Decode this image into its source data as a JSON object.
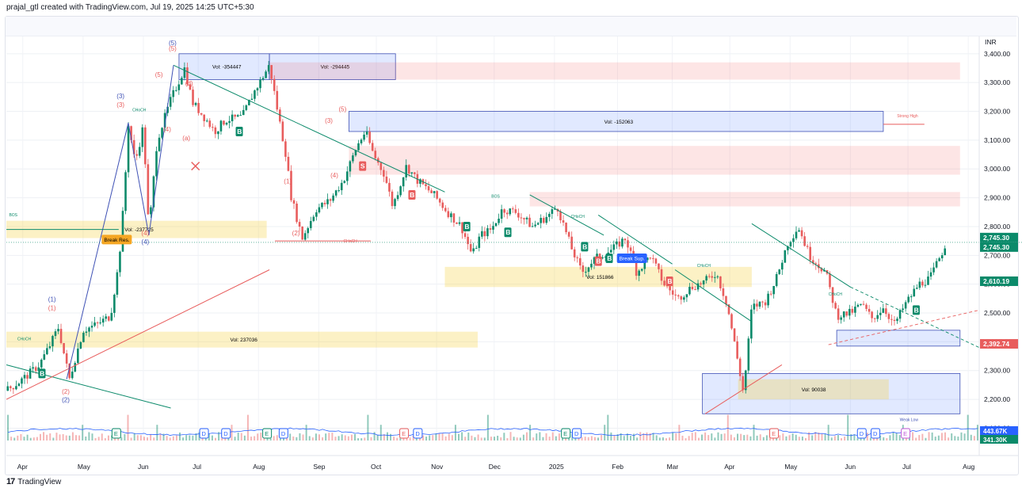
{
  "header": {
    "text": "prajal_gtl created with TradingView.com, Jul 19, 2025 14:25 UTC+5:30"
  },
  "footer": {
    "brand": "TradingView",
    "logo": "17"
  },
  "chart_data": {
    "type": "candlestick",
    "currency": "INR",
    "ylim": [
      2060,
      3460
    ],
    "y_ticks": [
      2100,
      2200,
      2300,
      2400,
      2500,
      2600,
      2700,
      2800,
      2900,
      3000,
      3100,
      3200,
      3300,
      3400
    ],
    "y_tick_labels": [
      "2,100.00",
      "2,200.00",
      "2,300.00",
      "2,400.00",
      "2,500.00",
      "2,600.00",
      "2,700.00",
      "2,800.00",
      "2,900.00",
      "3,000.00",
      "3,100.00",
      "3,200.00",
      "3,300.00",
      "3,400.00"
    ],
    "x_labels": [
      {
        "label": "Apr",
        "t": 0.6
      },
      {
        "label": "May",
        "t": 2.8
      },
      {
        "label": "Jun",
        "t": 5.0
      },
      {
        "label": "Jul",
        "t": 7.0
      },
      {
        "label": "Aug",
        "t": 9.2
      },
      {
        "label": "Sep",
        "t": 11.4
      },
      {
        "label": "Oct",
        "t": 13.5
      },
      {
        "label": "Nov",
        "t": 15.7
      },
      {
        "label": "Dec",
        "t": 17.8
      },
      {
        "label": "2025",
        "t": 20.0
      },
      {
        "label": "Feb",
        "t": 22.3
      },
      {
        "label": "Mar",
        "t": 24.3
      },
      {
        "label": "Apr",
        "t": 26.4
      },
      {
        "label": "May",
        "t": 28.6
      },
      {
        "label": "Jun",
        "t": 30.8
      },
      {
        "label": "Jul",
        "t": 32.9
      },
      {
        "label": "Aug",
        "t": 35.1
      }
    ],
    "price_path": [
      [
        0.0,
        2230
      ],
      [
        0.6,
        2270
      ],
      [
        1.2,
        2320
      ],
      [
        1.6,
        2390
      ],
      [
        1.9,
        2450
      ],
      [
        2.3,
        2270
      ],
      [
        2.8,
        2440
      ],
      [
        3.3,
        2460
      ],
      [
        3.8,
        2490
      ],
      [
        4.1,
        2670
      ],
      [
        4.3,
        2900
      ],
      [
        4.45,
        3160
      ],
      [
        4.7,
        3020
      ],
      [
        5.0,
        3150
      ],
      [
        5.2,
        2780
      ],
      [
        5.5,
        3100
      ],
      [
        6.0,
        3240
      ],
      [
        6.5,
        3350
      ],
      [
        6.8,
        3230
      ],
      [
        7.3,
        3170
      ],
      [
        7.6,
        3130
      ],
      [
        8.0,
        3170
      ],
      [
        8.6,
        3180
      ],
      [
        9.0,
        3260
      ],
      [
        9.6,
        3360
      ],
      [
        9.9,
        3200
      ],
      [
        10.2,
        3050
      ],
      [
        10.4,
        2900
      ],
      [
        10.8,
        2760
      ],
      [
        11.3,
        2860
      ],
      [
        11.8,
        2890
      ],
      [
        12.3,
        2960
      ],
      [
        12.8,
        3080
      ],
      [
        13.1,
        3130
      ],
      [
        13.4,
        3050
      ],
      [
        13.8,
        2980
      ],
      [
        14.1,
        2870
      ],
      [
        14.6,
        3010
      ],
      [
        15.0,
        2960
      ],
      [
        15.6,
        2910
      ],
      [
        16.1,
        2850
      ],
      [
        16.6,
        2800
      ],
      [
        17.0,
        2700
      ],
      [
        17.3,
        2770
      ],
      [
        17.7,
        2790
      ],
      [
        18.1,
        2860
      ],
      [
        18.6,
        2850
      ],
      [
        19.2,
        2800
      ],
      [
        19.8,
        2840
      ],
      [
        20.1,
        2870
      ],
      [
        20.6,
        2730
      ],
      [
        21.0,
        2640
      ],
      [
        21.5,
        2690
      ],
      [
        22.1,
        2720
      ],
      [
        22.6,
        2760
      ],
      [
        23.0,
        2640
      ],
      [
        23.5,
        2700
      ],
      [
        24.0,
        2600
      ],
      [
        24.5,
        2550
      ],
      [
        25.0,
        2590
      ],
      [
        25.5,
        2610
      ],
      [
        25.9,
        2640
      ],
      [
        26.3,
        2530
      ],
      [
        26.6,
        2380
      ],
      [
        26.9,
        2220
      ],
      [
        27.2,
        2520
      ],
      [
        27.7,
        2540
      ],
      [
        28.1,
        2620
      ],
      [
        28.5,
        2740
      ],
      [
        28.9,
        2800
      ],
      [
        29.3,
        2700
      ],
      [
        29.7,
        2660
      ],
      [
        29.9,
        2640
      ],
      [
        30.3,
        2490
      ],
      [
        30.8,
        2500
      ],
      [
        31.2,
        2530
      ],
      [
        31.6,
        2480
      ],
      [
        32.0,
        2520
      ],
      [
        32.4,
        2460
      ],
      [
        32.8,
        2530
      ],
      [
        33.3,
        2600
      ],
      [
        33.7,
        2620
      ],
      [
        34.0,
        2680
      ],
      [
        34.3,
        2745
      ]
    ],
    "last_price_labels": [
      "2,745.30",
      "2,745.30",
      "2,610.19",
      "2,392.74"
    ],
    "volume_labels": [
      "443.67K",
      "341.30K"
    ],
    "zones": [
      {
        "label": "Vol: -354447",
        "t0": 6.3,
        "t1": 9.6,
        "p0": 3310,
        "p1": 3400,
        "kind": "blue"
      },
      {
        "label": "Vol: -294445",
        "t0": 9.6,
        "t1": 14.2,
        "p0": 3310,
        "p1": 3400,
        "kind": "blue"
      },
      {
        "label": "",
        "t0": 9.6,
        "t1": 34.8,
        "p0": 3310,
        "p1": 3370,
        "kind": "red"
      },
      {
        "label": "Vol: -152063",
        "t0": 12.5,
        "t1": 32.0,
        "p0": 3130,
        "p1": 3200,
        "kind": "blue"
      },
      {
        "label": "",
        "t0": 12.5,
        "t1": 34.8,
        "p0": 2980,
        "p1": 3080,
        "kind": "red"
      },
      {
        "label": "",
        "t0": 19.1,
        "t1": 34.8,
        "p0": 2870,
        "p1": 2920,
        "kind": "red"
      },
      {
        "label": "Vol: -237725",
        "t0": 0.0,
        "t1": 9.5,
        "p0": 2760,
        "p1": 2820,
        "kind": "yellow"
      },
      {
        "label": "Vol: 151866",
        "t0": 16.0,
        "t1": 27.2,
        "p0": 2590,
        "p1": 2660,
        "kind": "yellow"
      },
      {
        "label": "Vol: 237036",
        "t0": 0.0,
        "t1": 17.2,
        "p0": 2380,
        "p1": 2435,
        "kind": "yellow"
      },
      {
        "label": "",
        "t0": 30.3,
        "t1": 34.8,
        "p0": 2385,
        "p1": 2440,
        "kind": "blue"
      },
      {
        "label": "",
        "t0": 25.4,
        "t1": 34.8,
        "p0": 2150,
        "p1": 2290,
        "kind": "blue"
      },
      {
        "label": "Vol: 90038",
        "t0": 26.7,
        "t1": 32.2,
        "p0": 2200,
        "p1": 2270,
        "kind": "yellow"
      }
    ],
    "lines": [
      {
        "t0": 0.0,
        "p0": 2320,
        "t1": 6.0,
        "p1": 2170,
        "color": "#0b8a6a"
      },
      {
        "t0": 6.1,
        "p0": 3360,
        "t1": 16.0,
        "p1": 2920,
        "color": "#0b8a6a"
      },
      {
        "t0": 19.1,
        "p0": 2910,
        "t1": 21.8,
        "p1": 2770,
        "color": "#0b8a6a"
      },
      {
        "t0": 21.6,
        "p0": 2840,
        "t1": 24.3,
        "p1": 2670,
        "color": "#0b8a6a"
      },
      {
        "t0": 24.4,
        "p0": 2650,
        "t1": 27.2,
        "p1": 2470,
        "color": "#0b8a6a"
      },
      {
        "t0": 27.2,
        "p0": 2810,
        "t1": 30.8,
        "p1": 2590,
        "color": "#0b8a6a"
      },
      {
        "t0": 0.0,
        "p0": 2200,
        "t1": 9.6,
        "p1": 2650,
        "color": "#e85d5d"
      },
      {
        "t0": 25.5,
        "p0": 2150,
        "t1": 28.3,
        "p1": 2320,
        "color": "#e85d5d"
      },
      {
        "t0": 4.45,
        "p0": 3160,
        "t1": 5.2,
        "p1": 2770,
        "color": "#3f51b5"
      },
      {
        "t0": 5.2,
        "p0": 2770,
        "t1": 6.1,
        "p1": 3360,
        "color": "#3f51b5"
      },
      {
        "t0": 2.2,
        "p0": 2270,
        "t1": 4.45,
        "p1": 3160,
        "color": "#3f51b5"
      },
      {
        "t0": 9.8,
        "p0": 2750,
        "t1": 13.3,
        "p1": 2750,
        "color": "#e85d5d"
      }
    ],
    "wave_labels": [
      {
        "text": "(5)",
        "t": 6.1,
        "p": 3430,
        "color": "#3f51b5"
      },
      {
        "text": "(5)",
        "t": 6.1,
        "p": 3410,
        "color": "#e85d5d"
      },
      {
        "text": "(5)",
        "t": 5.6,
        "p": 3320,
        "color": "#e85d5d"
      },
      {
        "text": "(b)",
        "t": 6.7,
        "p": 3290,
        "color": "#e85d5d"
      },
      {
        "text": "(3)",
        "t": 4.2,
        "p": 3245,
        "color": "#3f51b5"
      },
      {
        "text": "(3)",
        "t": 4.2,
        "p": 3215,
        "color": "#e85d5d"
      },
      {
        "text": "(4)",
        "t": 5.9,
        "p": 3130,
        "color": "#e85d5d"
      },
      {
        "text": "(a)",
        "t": 6.6,
        "p": 3100,
        "color": "#e85d5d"
      },
      {
        "text": "(4)",
        "t": 5.1,
        "p": 2770,
        "color": "#e85d5d"
      },
      {
        "text": "(4)",
        "t": 5.1,
        "p": 2740,
        "color": "#3f51b5"
      },
      {
        "text": "(1)",
        "t": 1.7,
        "p": 2540,
        "color": "#3f51b5"
      },
      {
        "text": "(1)",
        "t": 1.7,
        "p": 2510,
        "color": "#e85d5d"
      },
      {
        "text": "(2)",
        "t": 2.2,
        "p": 2220,
        "color": "#e85d5d"
      },
      {
        "text": "(2)",
        "t": 2.2,
        "p": 2190,
        "color": "#3f51b5"
      },
      {
        "text": "(5)",
        "t": 12.3,
        "p": 3200,
        "color": "#e85d5d"
      },
      {
        "text": "(3)",
        "t": 11.8,
        "p": 3160,
        "color": "#e85d5d"
      },
      {
        "text": "(4)",
        "t": 12.0,
        "p": 2970,
        "color": "#e85d5d"
      },
      {
        "text": "(1)",
        "t": 10.3,
        "p": 2950,
        "color": "#e85d5d"
      },
      {
        "text": "(2)",
        "t": 10.6,
        "p": 2770,
        "color": "#e85d5d"
      }
    ],
    "markers": [
      {
        "text": "B",
        "t": 1.3,
        "p": 2290,
        "kind": "buy"
      },
      {
        "text": "B",
        "t": 8.5,
        "p": 3130,
        "kind": "buy"
      },
      {
        "text": "S",
        "t": 13.0,
        "p": 3010,
        "kind": "sell"
      },
      {
        "text": "B",
        "t": 14.8,
        "p": 2910,
        "kind": "sell"
      },
      {
        "text": "B",
        "t": 16.8,
        "p": 2800,
        "kind": "buy"
      },
      {
        "text": "B",
        "t": 18.3,
        "p": 2780,
        "kind": "buy"
      },
      {
        "text": "B",
        "t": 21.1,
        "p": 2730,
        "kind": "buy"
      },
      {
        "text": "B",
        "t": 21.6,
        "p": 2680,
        "kind": "sell"
      },
      {
        "text": "B",
        "t": 22.0,
        "p": 2690,
        "kind": "buy"
      },
      {
        "text": "B",
        "t": 24.2,
        "p": 2610,
        "kind": "sell"
      },
      {
        "text": "B",
        "t": 33.2,
        "p": 2510,
        "kind": "buy"
      }
    ],
    "small_labels": [
      {
        "text": "BOS",
        "t": 0.1,
        "p": 2835,
        "color": "#0b8a6a"
      },
      {
        "text": "CHoCH",
        "t": 4.6,
        "p": 3200,
        "color": "#0b8a6a"
      },
      {
        "text": "CHoCH",
        "t": 12.3,
        "p": 2745,
        "color": "#e85d5d"
      },
      {
        "text": "CHoCH",
        "t": 25.2,
        "p": 2660,
        "color": "#0b8a6a"
      },
      {
        "text": "CHoCH",
        "t": 20.6,
        "p": 2830,
        "color": "#0b8a6a"
      },
      {
        "text": "CHoCH",
        "t": 30.0,
        "p": 2560,
        "color": "#0b8a6a"
      },
      {
        "text": "CHoCH",
        "t": 0.4,
        "p": 2405,
        "color": "#0b8a6a"
      },
      {
        "text": "BOS",
        "t": 17.7,
        "p": 2900,
        "color": "#0b8a6a"
      },
      {
        "text": "Strong High",
        "t": 32.5,
        "p": 3180,
        "color": "#e85d5d"
      },
      {
        "text": "Weak Low",
        "t": 32.6,
        "p": 2125,
        "color": "#3f51b5"
      }
    ],
    "callouts": [
      {
        "text": "Break Res.",
        "t": 4.0,
        "p": 2755,
        "bg": "#f5a623",
        "fg": "#000"
      },
      {
        "text": "Break Sup.",
        "t": 22.8,
        "p": 2690,
        "bg": "#2962ff",
        "fg": "#fff"
      }
    ],
    "event_badges": [
      {
        "text": "E",
        "t": 4.0,
        "color": "#0b8a6a"
      },
      {
        "text": "D",
        "t": 7.2,
        "color": "#2962ff"
      },
      {
        "text": "D",
        "t": 8.0,
        "color": "#2962ff"
      },
      {
        "text": "E",
        "t": 9.5,
        "color": "#0b8a6a"
      },
      {
        "text": "D",
        "t": 10.1,
        "color": "#2962ff"
      },
      {
        "text": "E",
        "t": 14.5,
        "color": "#e85d5d"
      },
      {
        "text": "D",
        "t": 15.0,
        "color": "#2962ff"
      },
      {
        "text": "E",
        "t": 20.4,
        "color": "#0b8a6a"
      },
      {
        "text": "D",
        "t": 20.8,
        "color": "#2962ff"
      },
      {
        "text": "E",
        "t": 28.0,
        "color": "#e85d5d"
      },
      {
        "text": "D",
        "t": 31.2,
        "color": "#2962ff"
      },
      {
        "text": "D",
        "t": 31.7,
        "color": "#2962ff"
      },
      {
        "text": "E",
        "t": 32.8,
        "color": "#c05ad8"
      }
    ],
    "colors": {
      "up": "#0b8a6a",
      "down": "#e85d5d",
      "blue_zone": "#2962ff",
      "yellow_zone": "#f4d03f",
      "red_zone": "#ef9a9a"
    }
  }
}
